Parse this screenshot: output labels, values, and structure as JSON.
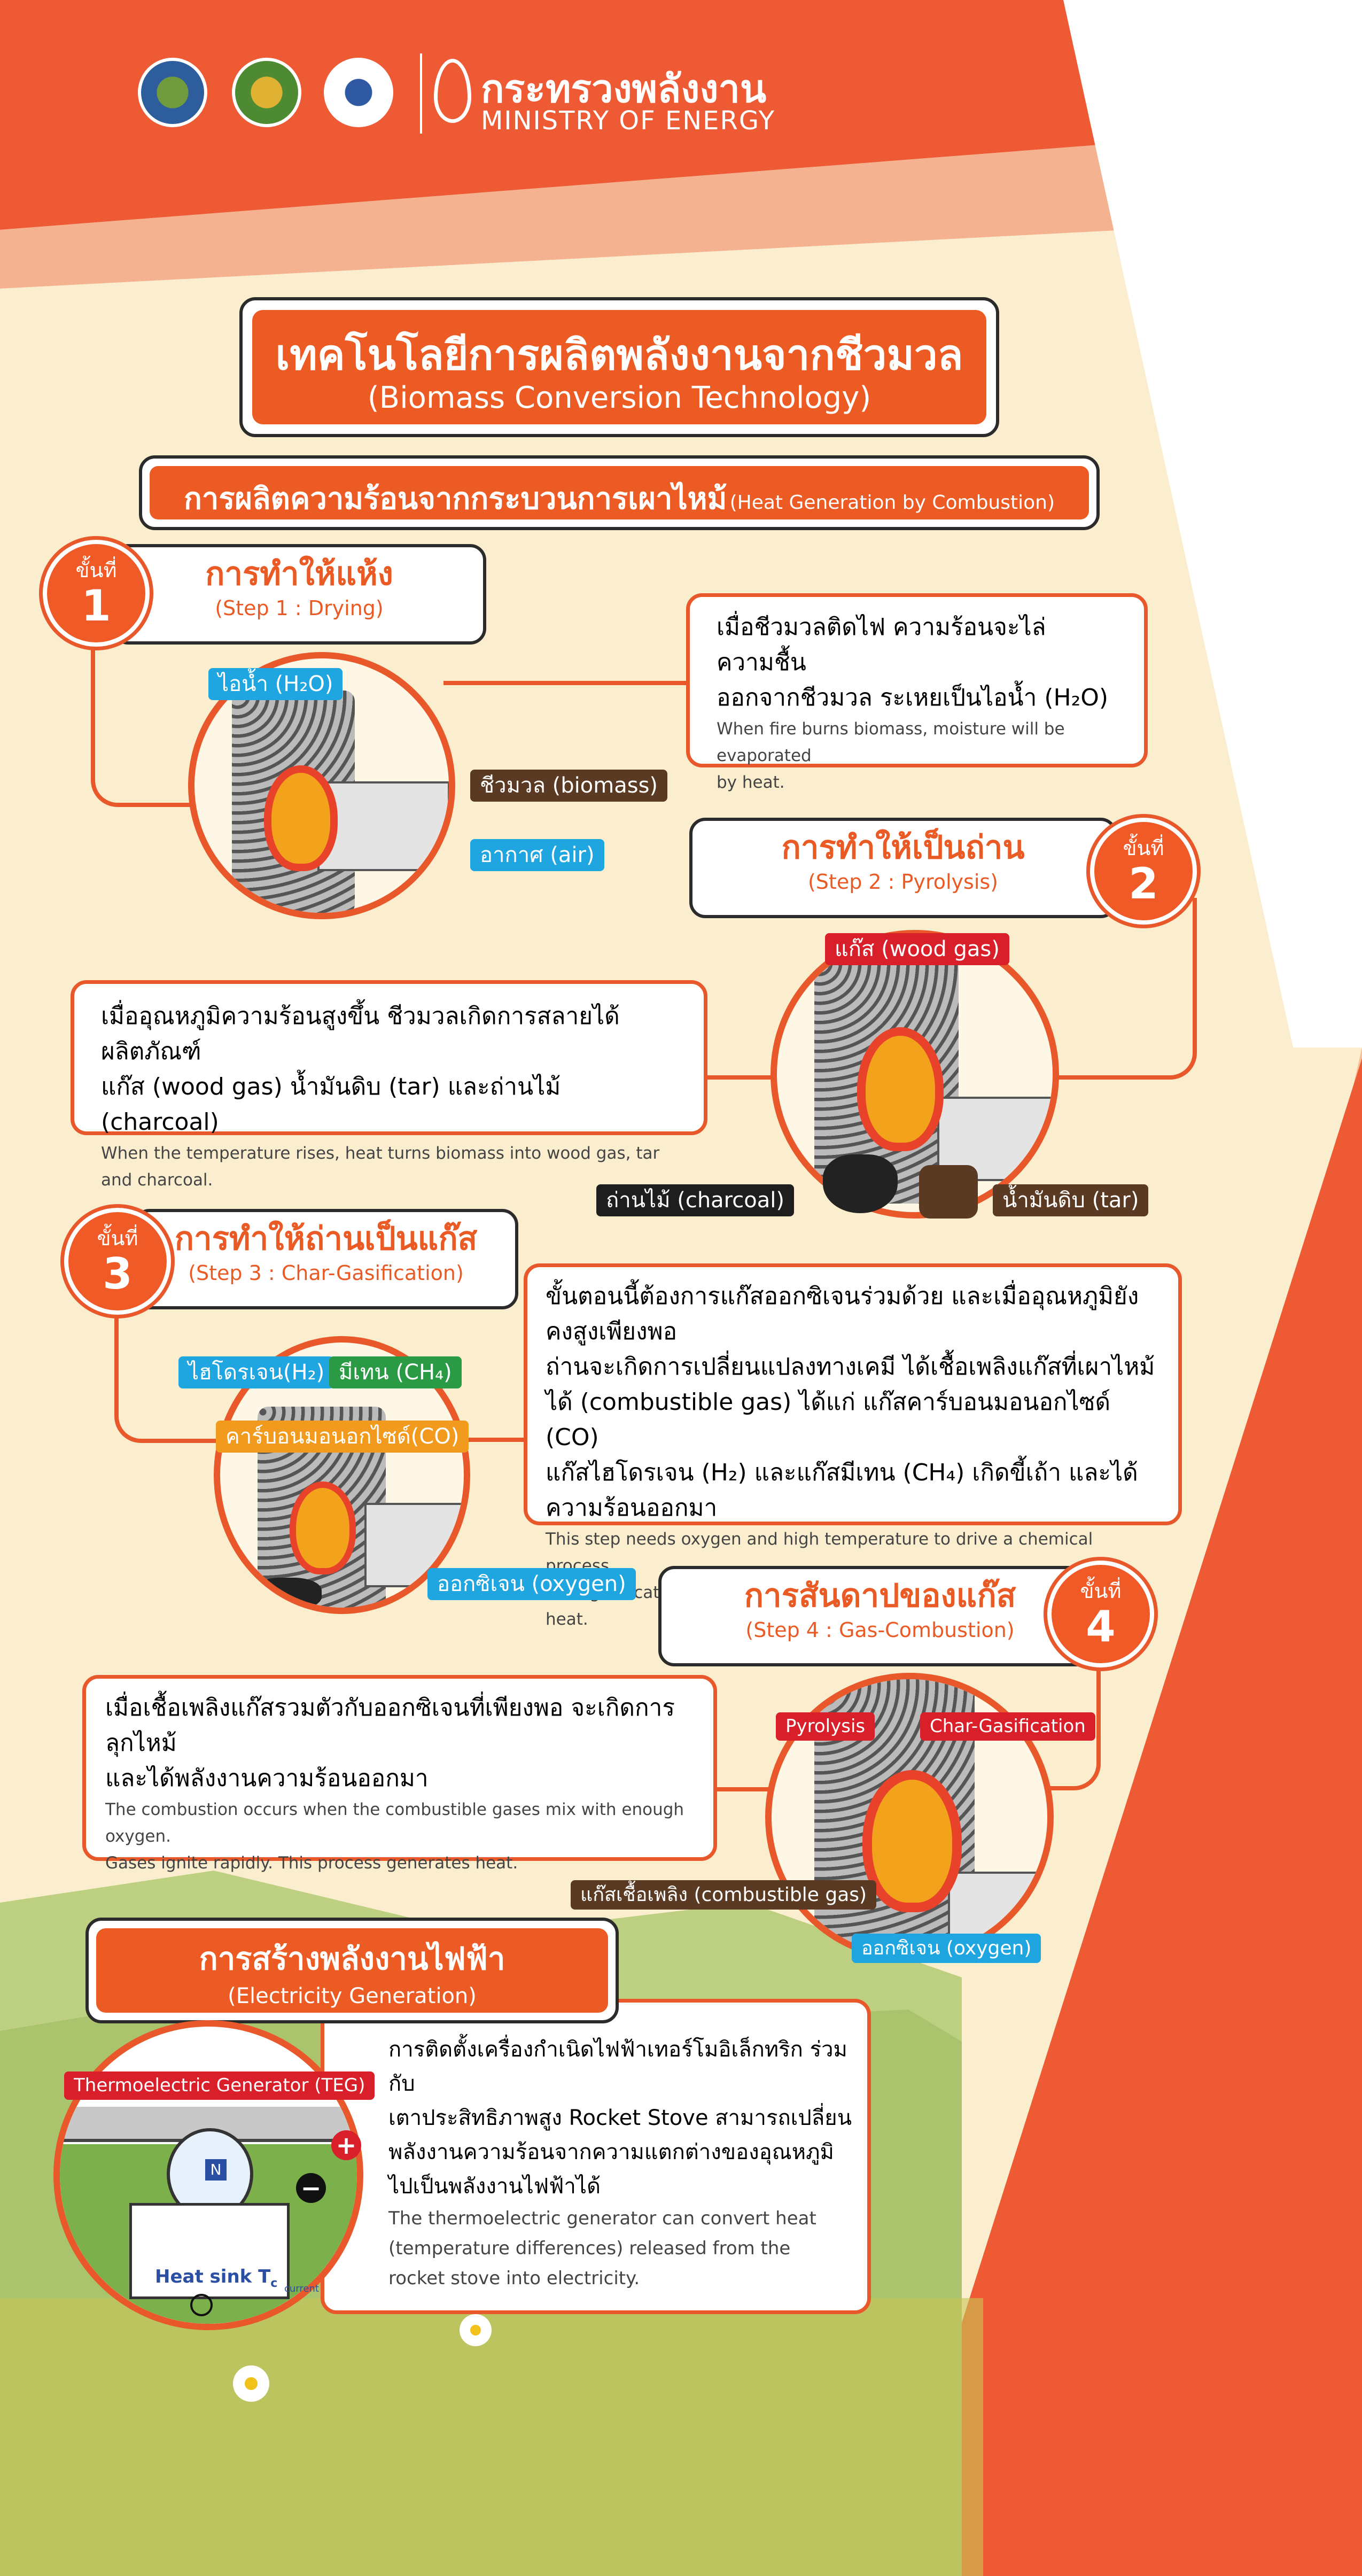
{
  "header": {
    "ministry_th": "กระทรวงพลังงาน",
    "ministry_en": "MINISTRY OF ENERGY",
    "logo_icons": [
      "government-seal-icon",
      "golden-emblem-icon",
      "energy-agency-icon",
      "flame-logo-icon"
    ]
  },
  "title": {
    "th": "เทคโนโลยีการผลิตพลังงานจากชีวมวล",
    "en": "(Biomass Conversion Technology)"
  },
  "section1": {
    "th": "การผลิตความร้อนจากกระบวนการเผาไหม้",
    "en": "(Heat Generation by Combustion)"
  },
  "step_label": "ขั้นที่",
  "steps": [
    {
      "num": "1",
      "title_th": "การทำให้แห้ง",
      "title_en": "(Step 1 : Drying)",
      "desc_th_1": "เมื่อชีวมวลติดไฟ ความร้อนจะไล่ความชื้น",
      "desc_th_2": "ออกจากชีวมวล ระเหยเป็นไอน้ำ (H₂O)",
      "desc_en_1": "When fire burns biomass, moisture will be evaporated",
      "desc_en_2": "by heat.",
      "tags": {
        "steam": "ไอน้ำ (H₂O)",
        "biomass": "ชีวมวล (biomass)",
        "air": "อากาศ (air)"
      }
    },
    {
      "num": "2",
      "title_th": "การทำให้เป็นถ่าน",
      "title_en": "(Step 2 : Pyrolysis)",
      "desc_th_1": "เมื่ออุณหภูมิความร้อนสูงขึ้น ชีวมวลเกิดการสลายได้ผลิตภัณฑ์",
      "desc_th_2": "แก๊ส (wood gas) น้ำมันดิบ (tar) และถ่านไม้ (charcoal)",
      "desc_en_1": "When the temperature rises, heat turns biomass into wood gas, tar and charcoal.",
      "tags": {
        "woodgas": "แก๊ส (wood gas)",
        "charcoal": "ถ่านไม้ (charcoal)",
        "tar": "น้ำมันดิบ (tar)"
      }
    },
    {
      "num": "3",
      "title_th": "การทำให้ถ่านเป็นแก๊ส",
      "title_en": "(Step 3 : Char-Gasification)",
      "desc_th_1": "ขั้นตอนนี้ต้องการแก๊สออกซิเจนร่วมด้วย และเมื่ออุณหภูมิยังคงสูงเพียงพอ",
      "desc_th_2": "ถ่านจะเกิดการเปลี่ยนแปลงทางเคมี ได้เชื้อเพลิงแก๊สที่เผาไหม้",
      "desc_th_3": "ได้ (combustible gas) ได้แก่ แก๊สคาร์บอนมอนอกไซด์ (CO)",
      "desc_th_4": "แก๊สไฮโดรเจน (H₂) และแก๊สมีเทน (CH₄) เกิดขี้เถ้า และได้ความร้อนออกมา",
      "desc_en_1": "This step needs oxygen and high temperature to drive a chemical process.",
      "desc_en_2": "Char-gasification turns char to combustible gases and ash and releases heat.",
      "tags": {
        "h2": "ไฮโดรเจน(H₂)",
        "ch4": "มีเทน (CH₄)",
        "co": "คาร์บอนมอนอกไซด์(CO)",
        "oxygen": "ออกซิเจน (oxygen)"
      }
    },
    {
      "num": "4",
      "title_th": "การสันดาปของแก๊ส",
      "title_en": "(Step 4 : Gas-Combustion)",
      "desc_th_1": "เมื่อเชื้อเพลิงแก๊สรวมตัวกับออกซิเจนที่เพียงพอ จะเกิดการลุกไหม้",
      "desc_th_2": "และได้พลังงานความร้อนออกมา",
      "desc_en_1": "The combustion occurs when the combustible gases mix with enough oxygen.",
      "desc_en_2": "Gases ignite rapidly. This process generates heat.",
      "tags": {
        "pyrolysis": "Pyrolysis",
        "chargas": "Char-Gasification",
        "combgas": "แก๊สเชื้อเพลิง (combustible gas)",
        "oxygen": "ออกซิเจน (oxygen)"
      }
    }
  ],
  "electricity": {
    "title_th": "การสร้างพลังงานไฟฟ้า",
    "title_en": "(Electricity Generation)",
    "teg_label": "Thermoelectric Generator (TEG)",
    "plus": "+",
    "minus": "−",
    "n_label": "N",
    "heatsink": "Heat sink T",
    "heatsink_sub": "c",
    "current": "current",
    "desc_th_1": "การติดตั้งเครื่องกำเนิดไฟฟ้าเทอร์โมอิเล็กทริก ร่วมกับ",
    "desc_th_2": "เตาประสิทธิภาพสูง Rocket Stove สามารถเปลี่ยน",
    "desc_th_3": "พลังงานความร้อนจากความแตกต่างของอุณหภูมิ",
    "desc_th_4": "ไปเป็นพลังงานไฟฟ้าได้",
    "desc_en_1": "The thermoelectric generator can convert heat",
    "desc_en_2": "(temperature differences) released from the",
    "desc_en_3": "rocket stove into electricity."
  },
  "colors": {
    "orange": "#e8582a",
    "cream": "#fbeecf",
    "blue_tag": "#1fa6e0",
    "green_tag": "#2a9a45",
    "red_tag": "#d81f2a",
    "dark_tag": "#1e1e1e",
    "brown_tag": "#5a3a22",
    "amber_tag": "#f19a1d"
  }
}
